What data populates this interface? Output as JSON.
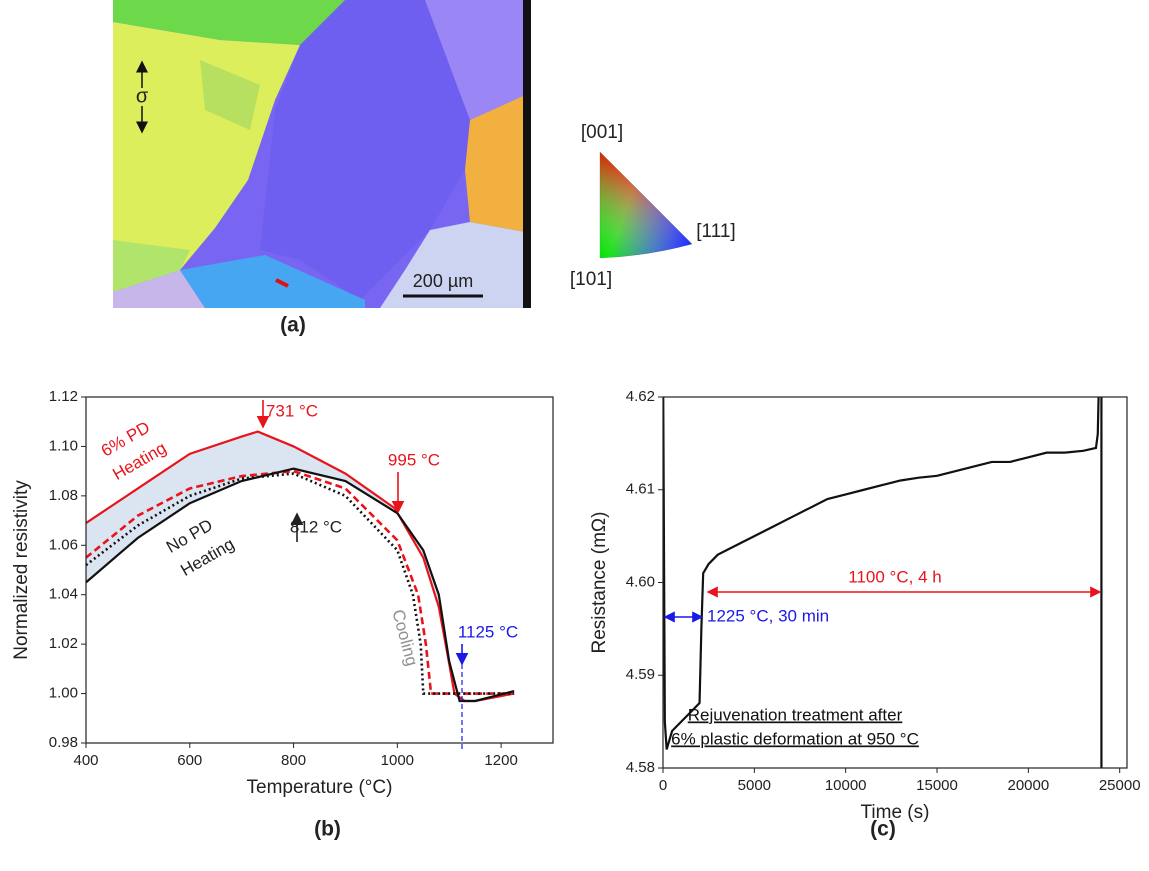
{
  "panel_a": {
    "label": "(a)",
    "stress": "σ",
    "scale_bar": "200 µm",
    "ipf": [
      "[001]",
      "[111]",
      "[101]"
    ]
  },
  "chart_data": [
    {
      "type": "line",
      "label": "(b)",
      "x_label": "Temperature (°C)",
      "y_label": "Normalized resistivity",
      "xlim": [
        400,
        1300
      ],
      "ylim": [
        0.98,
        1.12
      ],
      "xticks": [
        400,
        600,
        800,
        1000,
        1200
      ],
      "yticks": [
        0.98,
        {
          "value": 1,
          "label": "1.00"
        },
        1.02,
        1.04,
        1.06,
        1.08,
        {
          "value": 1.1,
          "label": "1.10"
        },
        1.12
      ],
      "fill_between": [
        0,
        2
      ],
      "fill_color": "#dbe5f1",
      "series": [
        {
          "color": "#e8141c",
          "style": "solid",
          "x": [
            400,
            500,
            600,
            700,
            731,
            800,
            900,
            995,
            1050,
            1080,
            1100,
            1110,
            1130,
            1150,
            1200,
            1225
          ],
          "values": [
            1.069,
            1.083,
            1.097,
            1.104,
            1.106,
            1.1,
            1.089,
            1.075,
            1.055,
            1.035,
            1.012,
            1.0,
            0.997,
            0.997,
            0.999,
            1.0
          ]
        },
        {
          "color": "#e8141c",
          "style": "dashed",
          "x": [
            400,
            500,
            600,
            700,
            800,
            900,
            1000,
            1040,
            1055,
            1065,
            1100,
            1225
          ],
          "values": [
            1.055,
            1.072,
            1.083,
            1.088,
            1.09,
            1.083,
            1.062,
            1.04,
            1.02,
            1.0,
            1.0,
            1.0
          ]
        },
        {
          "color": "#111111",
          "style": "solid",
          "x": [
            400,
            500,
            600,
            700,
            800,
            900,
            1000,
            1050,
            1080,
            1100,
            1120,
            1150,
            1225
          ],
          "values": [
            1.045,
            1.063,
            1.077,
            1.086,
            1.091,
            1.086,
            1.073,
            1.058,
            1.04,
            1.013,
            0.997,
            0.997,
            1.001
          ]
        },
        {
          "color": "#111111",
          "style": "dotted",
          "x": [
            400,
            500,
            600,
            700,
            800,
            900,
            1000,
            1030,
            1045,
            1050,
            1225
          ],
          "values": [
            1.052,
            1.068,
            1.08,
            1.087,
            1.089,
            1.08,
            1.058,
            1.04,
            1.02,
            1.0,
            1.0
          ]
        }
      ],
      "annotations": [
        {
          "text": "6% PD",
          "color": "#e8141c"
        },
        {
          "text": "Heating",
          "color": "#e8141c"
        },
        {
          "text": "731 °C",
          "color": "#e8141c"
        },
        {
          "text": "995 °C",
          "color": "#e8141c"
        },
        {
          "text": "812 °C",
          "color": "#222222"
        },
        {
          "text": "No PD",
          "color": "#222222"
        },
        {
          "text": "Heating",
          "color": "#222222"
        },
        {
          "text": "Cooling",
          "color": "#909090"
        },
        {
          "text": "1125 °C",
          "color": "#1a1ae6"
        }
      ]
    },
    {
      "type": "line",
      "label": "(c)",
      "x_label": "Time (s)",
      "y_label": "Resistance (mΩ)",
      "xlim": [
        0,
        25400
      ],
      "ylim": [
        4.58,
        4.62
      ],
      "xticks": [
        0,
        5000,
        10000,
        15000,
        20000,
        25000
      ],
      "yticks": [
        4.58,
        4.59,
        {
          "value": 4.6,
          "label": "4.60"
        },
        4.61,
        4.62
      ],
      "series": [
        {
          "color": "#111111",
          "style": "solid",
          "x": [
            0,
            100,
            200,
            500,
            1000,
            1500,
            2000,
            2100,
            2200,
            2500,
            3000,
            4000,
            5000,
            6000,
            7000,
            8000,
            9000,
            10000,
            11000,
            12000,
            13000,
            14000,
            15000,
            16000,
            17000,
            18000,
            19000,
            20000,
            21000,
            22000,
            23000,
            23700,
            23800,
            23900,
            24000,
            24000
          ],
          "values": [
            4.625,
            4.585,
            4.582,
            4.584,
            4.585,
            4.586,
            4.587,
            4.595,
            4.601,
            4.602,
            4.603,
            4.604,
            4.605,
            4.606,
            4.607,
            4.608,
            4.609,
            4.6095,
            4.61,
            4.6105,
            4.611,
            4.6113,
            4.6115,
            4.612,
            4.6125,
            4.613,
            4.613,
            4.6135,
            4.614,
            4.614,
            4.6142,
            4.6145,
            4.616,
            4.625,
            4.625,
            4.575
          ]
        }
      ],
      "annotations": [
        {
          "text": "1100 °C, 4 h",
          "color": "#e8141c"
        },
        {
          "text": "1225 °C, 30 min",
          "color": "#1a1ae6"
        },
        {
          "text": "Rejuvenation treatment after",
          "color": "#111111"
        },
        {
          "text": "6% plastic deformation at 950 °C",
          "color": "#111111"
        }
      ]
    }
  ]
}
